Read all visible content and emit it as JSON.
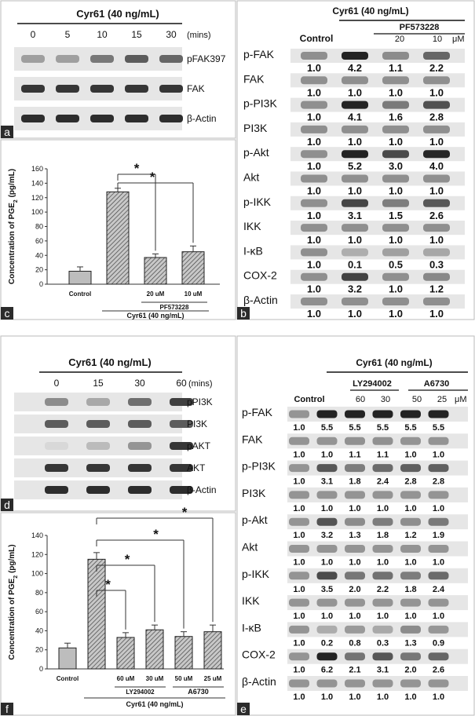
{
  "panels": {
    "a": {
      "letter": "a",
      "treatment": "Cyr61 (40 ng/mL)",
      "unit": "(mins)",
      "times": [
        "0",
        "5",
        "10",
        "15",
        "30"
      ],
      "rows": [
        {
          "label": "pFAK397",
          "intensity": [
            0.35,
            0.35,
            0.55,
            0.7,
            0.65
          ]
        },
        {
          "label": "FAK",
          "intensity": [
            0.9,
            0.9,
            0.9,
            0.9,
            0.9
          ]
        },
        {
          "label": "β-Actin",
          "intensity": [
            0.95,
            0.95,
            0.95,
            0.95,
            0.95
          ]
        }
      ]
    },
    "b": {
      "letter": "b",
      "treatment": "Cyr61 (40 ng/mL)",
      "inhibitor": "PF573228",
      "control_label": "Control",
      "doses": [
        "20",
        "10"
      ],
      "dose_unit": "μM",
      "rows": [
        {
          "label": "p-FAK",
          "values": [
            "1.0",
            "4.2",
            "1.1",
            "2.2"
          ]
        },
        {
          "label": "FAK",
          "values": [
            "1.0",
            "1.0",
            "1.0",
            "1.0"
          ]
        },
        {
          "label": "p-PI3K",
          "values": [
            "1.0",
            "4.1",
            "1.6",
            "2.8"
          ]
        },
        {
          "label": "PI3K",
          "values": [
            "1.0",
            "1.0",
            "1.0",
            "1.0"
          ]
        },
        {
          "label": "p-Akt",
          "values": [
            "1.0",
            "5.2",
            "3.0",
            "4.0"
          ]
        },
        {
          "label": "Akt",
          "values": [
            "1.0",
            "1.0",
            "1.0",
            "1.0"
          ]
        },
        {
          "label": "p-IKK",
          "values": [
            "1.0",
            "3.1",
            "1.5",
            "2.6"
          ]
        },
        {
          "label": "IKK",
          "values": [
            "1.0",
            "1.0",
            "1.0",
            "1.0"
          ]
        },
        {
          "label": "I-κB",
          "values": [
            "1.0",
            "0.1",
            "0.5",
            "0.3"
          ]
        },
        {
          "label": "COX-2",
          "values": [
            "1.0",
            "3.2",
            "1.0",
            "1.2"
          ]
        },
        {
          "label": "β-Actin",
          "values": [
            "1.0",
            "1.0",
            "1.0",
            "1.0"
          ]
        }
      ]
    },
    "c": {
      "letter": "c",
      "star": "*",
      "inhibitor": "PF573228",
      "treatment": "Cyr61 (40 ng/mL)",
      "bar_labels": [
        "Control",
        "",
        "20 uM",
        "10 uM"
      ]
    },
    "d": {
      "letter": "d",
      "treatment": "Cyr61 (40 ng/mL)",
      "unit": "(mins)",
      "times": [
        "0",
        "15",
        "30",
        "60"
      ],
      "rows": [
        {
          "label": "pPI3K",
          "intensity": [
            0.45,
            0.3,
            0.6,
            0.85
          ]
        },
        {
          "label": "PI3K",
          "intensity": [
            0.7,
            0.7,
            0.7,
            0.7
          ]
        },
        {
          "label": "pAKT",
          "intensity": [
            0.05,
            0.2,
            0.4,
            0.9
          ]
        },
        {
          "label": "AKT",
          "intensity": [
            0.9,
            0.9,
            0.9,
            0.9
          ]
        },
        {
          "label": "β-Actin",
          "intensity": [
            0.95,
            0.95,
            0.95,
            0.95
          ]
        }
      ]
    },
    "e": {
      "letter": "e",
      "treatment": "Cyr61 (40 ng/mL)",
      "control_label": "Control",
      "inhibitors": [
        "LY294002",
        "A6730"
      ],
      "doses": [
        "60",
        "30",
        "50",
        "25"
      ],
      "dose_unit": "μM",
      "rows": [
        {
          "label": "p-FAK",
          "values": [
            "1.0",
            "5.5",
            "5.5",
            "5.5",
            "5.5",
            "5.5"
          ]
        },
        {
          "label": "FAK",
          "values": [
            "1.0",
            "1.0",
            "1.1",
            "1.1",
            "1.0",
            "1.0"
          ]
        },
        {
          "label": "p-PI3K",
          "values": [
            "1.0",
            "3.1",
            "1.8",
            "2.4",
            "2.8",
            "2.8"
          ]
        },
        {
          "label": "PI3K",
          "values": [
            "1.0",
            "1.0",
            "1.0",
            "1.0",
            "1.0",
            "1.0"
          ]
        },
        {
          "label": "p-Akt",
          "values": [
            "1.0",
            "3.2",
            "1.3",
            "1.8",
            "1.2",
            "1.9"
          ]
        },
        {
          "label": "Akt",
          "values": [
            "1.0",
            "1.0",
            "1.0",
            "1.0",
            "1.0",
            "1.0"
          ]
        },
        {
          "label": "p-IKK",
          "values": [
            "1.0",
            "3.5",
            "2.0",
            "2.2",
            "1.8",
            "2.4"
          ]
        },
        {
          "label": "IKK",
          "values": [
            "1.0",
            "1.0",
            "1.0",
            "1.0",
            "1.0",
            "1.0"
          ]
        },
        {
          "label": "I-κB",
          "values": [
            "1.0",
            "0.2",
            "0.8",
            "0.3",
            "1.3",
            "0.9"
          ]
        },
        {
          "label": "COX-2",
          "values": [
            "1.0",
            "6.2",
            "2.1",
            "3.1",
            "2.0",
            "2.6"
          ]
        },
        {
          "label": "β-Actin",
          "values": [
            "1.0",
            "1.0",
            "1.0",
            "1.0",
            "1.0",
            "1.0"
          ]
        }
      ]
    },
    "f": {
      "letter": "f",
      "star": "*",
      "inhibitors": [
        "LY294002",
        "A6730"
      ],
      "treatment": "Cyr61 (40 ng/mL)",
      "bar_labels": [
        "Control",
        "",
        "60 uM",
        "30 uM",
        "50 uM",
        "25 uM"
      ]
    }
  },
  "chart_data": [
    {
      "type": "bar",
      "panel": "c",
      "ylabel": "Concentration of PGE2 (pg/mL)",
      "ylim": [
        0,
        160
      ],
      "yticks": [
        0,
        20,
        40,
        60,
        80,
        100,
        120,
        140,
        160
      ],
      "categories": [
        "Control",
        "Cyr61",
        "20 uM",
        "10 uM"
      ],
      "values": [
        18,
        128,
        37,
        45
      ],
      "errors": [
        6,
        5,
        5,
        8
      ]
    },
    {
      "type": "bar",
      "panel": "f",
      "ylabel": "Concentration of PGE2 (pg/mL)",
      "ylim": [
        0,
        140
      ],
      "yticks": [
        0,
        20,
        40,
        60,
        80,
        100,
        120,
        140
      ],
      "categories": [
        "Control",
        "Cyr61",
        "60 uM",
        "30 uM",
        "50 uM",
        "25 uM"
      ],
      "values": [
        22,
        115,
        33,
        41,
        34,
        39
      ],
      "errors": [
        5,
        7,
        5,
        5,
        5,
        7
      ]
    }
  ]
}
